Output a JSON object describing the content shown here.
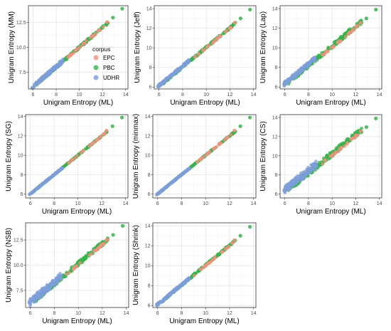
{
  "colors": {
    "EPC": "#F1917D",
    "PBC": "#36B34A",
    "UDHR": "#7C9DD9",
    "panel_border": "#333333",
    "grid_major": "#e6e6e6",
    "grid_minor": "#f3f3f3"
  },
  "legend": {
    "title": "corpus",
    "items": [
      {
        "key": "EPC",
        "label": "EPC"
      },
      {
        "key": "PBC",
        "label": "PBC"
      },
      {
        "key": "UDHR",
        "label": "UDHR"
      }
    ]
  },
  "chart_data": [
    {
      "type": "scatter",
      "xlabel": "Unigram Entropy (ML)",
      "ylabel": "Unigram Entropy (MM)",
      "xlim": [
        5.6,
        14.2
      ],
      "ylim": [
        5.8,
        14.2
      ],
      "xticks": [
        6,
        8,
        10,
        12,
        14
      ],
      "yticks": [
        7.5,
        10.0,
        12.5
      ],
      "series_style": "mm"
    },
    {
      "type": "scatter",
      "xlabel": "Unigram Entropy (ML)",
      "ylabel": "Unigram Entropy (Jeff)",
      "xlim": [
        5.6,
        14.2
      ],
      "ylim": [
        5.8,
        14.3
      ],
      "xticks": [
        6,
        8,
        10,
        12,
        14
      ],
      "yticks": [
        6,
        8,
        10,
        12,
        14
      ],
      "series_style": "jeff"
    },
    {
      "type": "scatter",
      "xlabel": "Unigram Entropy (ML)",
      "ylabel": "Unigram Entropy (Lap)",
      "xlim": [
        5.6,
        14.2
      ],
      "ylim": [
        5.8,
        14.3
      ],
      "xticks": [
        6,
        8,
        10,
        12,
        14
      ],
      "yticks": [
        6,
        8,
        10,
        12,
        14
      ],
      "series_style": "lap"
    },
    {
      "type": "scatter",
      "xlabel": "Unigram Entropy (ML)",
      "ylabel": "Unigram Entropy (SG)",
      "xlim": [
        5.6,
        14.2
      ],
      "ylim": [
        5.6,
        14.2
      ],
      "xticks": [
        6,
        8,
        10,
        12,
        14
      ],
      "yticks": [
        6,
        8,
        10,
        12,
        14
      ],
      "series_style": "sg"
    },
    {
      "type": "scatter",
      "xlabel": "",
      "ylabel": "Unigram Entropy (minmax)",
      "xlim": [
        5.6,
        14.2
      ],
      "ylim": [
        5.6,
        14.2
      ],
      "xticks": [
        6,
        8,
        10,
        12,
        14
      ],
      "yticks": [
        6,
        8,
        10,
        12,
        14
      ],
      "series_style": "minmax"
    },
    {
      "type": "scatter",
      "xlabel": "Unigram Entropy (ML)",
      "ylabel": "Unigram Entropy (CS)",
      "xlim": [
        5.6,
        14.2
      ],
      "ylim": [
        5.6,
        14.3
      ],
      "xticks": [
        6,
        8,
        10,
        12,
        14
      ],
      "yticks": [
        6,
        8,
        10,
        12,
        14
      ],
      "series_style": "cs"
    },
    {
      "type": "scatter",
      "xlabel": "Unigram Entropy (ML)",
      "ylabel": "Unigram Entropy (NSB)",
      "xlim": [
        5.6,
        14.2
      ],
      "ylim": [
        5.8,
        14.2
      ],
      "xticks": [
        6,
        8,
        10,
        12,
        14
      ],
      "yticks": [
        7.5,
        10.0,
        12.5
      ],
      "series_style": "nsb"
    },
    {
      "type": "scatter",
      "xlabel": "Unigram Entropy (ML)",
      "ylabel": "Unigram Entropy (Shrink)",
      "xlim": [
        5.6,
        14.2
      ],
      "ylim": [
        5.8,
        14.3
      ],
      "xticks": [
        6,
        8,
        10,
        12,
        14
      ],
      "yticks": [
        6,
        8,
        10,
        12,
        14
      ],
      "series_style": "shrink"
    }
  ]
}
